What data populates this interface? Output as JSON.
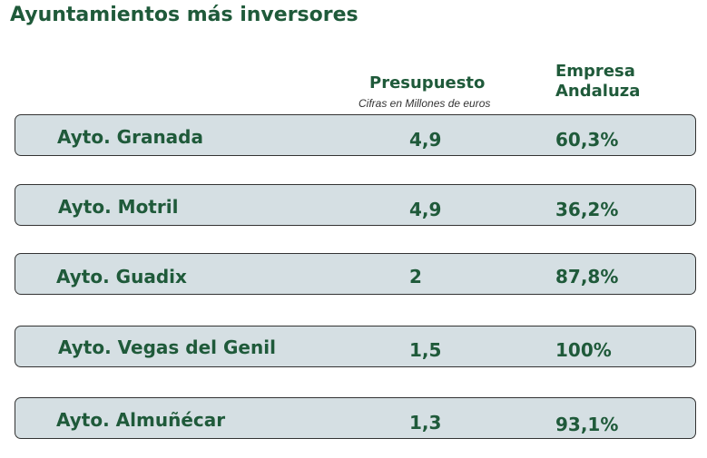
{
  "title": "Ayuntamientos más inversores",
  "headers": {
    "budget": "Presupuesto",
    "budget_note": "Cifras en Millones de euros",
    "company_line1": "Empresa",
    "company_line2": "Andaluza"
  },
  "rows": [
    {
      "name": "Ayto. Granada",
      "budget": "4,9",
      "company": "60,3%"
    },
    {
      "name": "Ayto. Motril",
      "budget": "4,9",
      "company": "36,2%"
    },
    {
      "name": "Ayto. Guadix",
      "budget": "2",
      "company": "87,8%"
    },
    {
      "name": "Ayto. Vegas del Genil",
      "budget": "1,5",
      "company": "100%"
    },
    {
      "name": "Ayto. Almuñécar",
      "budget": "1,3",
      "company": "93,1%"
    }
  ]
}
